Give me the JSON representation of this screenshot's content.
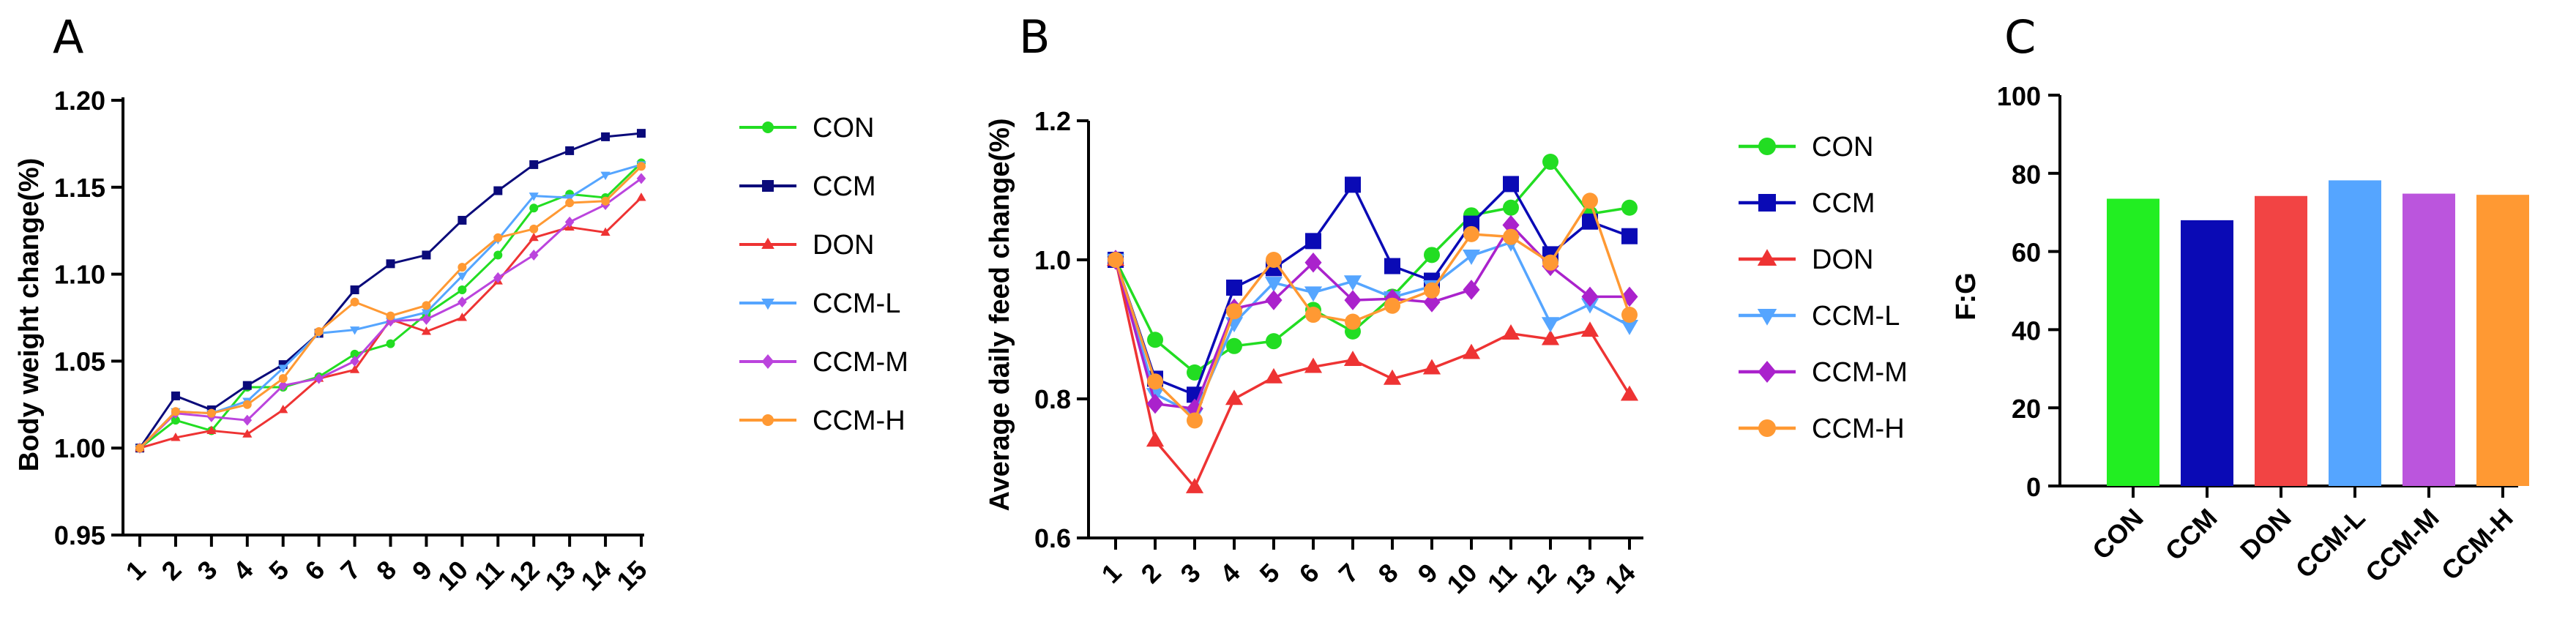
{
  "chart_data": [
    {
      "panel": "A",
      "type": "line",
      "ylabel": "Body weight change(%)",
      "xlabel": "",
      "categories": [
        "1",
        "2",
        "3",
        "4",
        "5",
        "6",
        "7",
        "8",
        "9",
        "10",
        "11",
        "12",
        "13",
        "14",
        "15"
      ],
      "ylim": [
        0.95,
        1.2
      ],
      "yticks": [
        "0.95",
        "1.00",
        "1.05",
        "1.10",
        "1.15",
        "1.20"
      ],
      "legend_position": "right",
      "series": [
        {
          "name": "CON",
          "color": "#22dd22",
          "marker": "circle",
          "values": [
            1.0,
            1.016,
            1.01,
            1.035,
            1.035,
            1.041,
            1.054,
            1.06,
            1.077,
            1.091,
            1.111,
            1.138,
            1.146,
            1.144,
            1.164
          ]
        },
        {
          "name": "CCM",
          "color": "#0a0a7a",
          "marker": "square",
          "values": [
            1.0,
            1.03,
            1.022,
            1.036,
            1.048,
            1.066,
            1.091,
            1.106,
            1.111,
            1.131,
            1.148,
            1.163,
            1.171,
            1.179,
            1.181
          ]
        },
        {
          "name": "DON",
          "color": "#ee3333",
          "marker": "triangle",
          "values": [
            1.0,
            1.006,
            1.01,
            1.008,
            1.022,
            1.04,
            1.045,
            1.074,
            1.067,
            1.075,
            1.096,
            1.121,
            1.127,
            1.124,
            1.144
          ]
        },
        {
          "name": "CCM-L",
          "color": "#55a5ff",
          "marker": "triangle-down",
          "values": [
            1.0,
            1.021,
            1.02,
            1.027,
            1.046,
            1.066,
            1.068,
            1.073,
            1.078,
            1.099,
            1.12,
            1.145,
            1.144,
            1.157,
            1.163
          ]
        },
        {
          "name": "CCM-M",
          "color": "#bb44dd",
          "marker": "diamond",
          "values": [
            1.0,
            1.02,
            1.018,
            1.016,
            1.036,
            1.04,
            1.05,
            1.073,
            1.074,
            1.084,
            1.098,
            1.111,
            1.13,
            1.14,
            1.155
          ]
        },
        {
          "name": "CCM-H",
          "color": "#ff9933",
          "marker": "circle",
          "values": [
            1.0,
            1.021,
            1.02,
            1.025,
            1.04,
            1.067,
            1.084,
            1.076,
            1.082,
            1.104,
            1.121,
            1.126,
            1.141,
            1.142,
            1.162
          ]
        }
      ]
    },
    {
      "panel": "B",
      "type": "line",
      "ylabel": "Average daily feed change(%)",
      "xlabel": "",
      "categories": [
        "1",
        "2",
        "3",
        "4",
        "5",
        "6",
        "7",
        "8",
        "9",
        "10",
        "11",
        "12",
        "13",
        "14"
      ],
      "ylim": [
        0.6,
        1.2
      ],
      "yticks": [
        "0.6",
        "0.8",
        "1.0",
        "1.2"
      ],
      "legend_position": "right",
      "series": [
        {
          "name": "CON",
          "color": "#22dd22",
          "marker": "circle",
          "values": [
            1.0,
            0.885,
            0.838,
            0.876,
            0.883,
            0.928,
            0.897,
            0.947,
            1.007,
            1.064,
            1.075,
            1.141,
            1.066,
            1.075
          ]
        },
        {
          "name": "CCM",
          "color": "#0a0ab5",
          "marker": "square",
          "values": [
            1.0,
            0.829,
            0.806,
            0.96,
            0.988,
            1.027,
            1.108,
            0.991,
            0.97,
            1.052,
            1.109,
            1.008,
            1.055,
            1.034
          ]
        },
        {
          "name": "DON",
          "color": "#ee3333",
          "marker": "triangle",
          "values": [
            1.0,
            0.74,
            0.673,
            0.8,
            0.831,
            0.846,
            0.856,
            0.829,
            0.844,
            0.866,
            0.894,
            0.886,
            0.898,
            0.806
          ]
        },
        {
          "name": "CCM-L",
          "color": "#55a5ff",
          "marker": "triangle-down",
          "values": [
            1.0,
            0.807,
            0.778,
            0.909,
            0.967,
            0.953,
            0.969,
            0.946,
            0.962,
            1.006,
            1.025,
            0.909,
            0.936,
            0.905
          ]
        },
        {
          "name": "CCM-M",
          "color": "#aa22cc",
          "marker": "diamond",
          "values": [
            1.0,
            0.793,
            0.786,
            0.93,
            0.942,
            0.996,
            0.942,
            0.944,
            0.939,
            0.957,
            1.05,
            0.991,
            0.947,
            0.947
          ]
        },
        {
          "name": "CCM-H",
          "color": "#ff9933",
          "marker": "circle",
          "values": [
            1.0,
            0.825,
            0.769,
            0.926,
            1.0,
            0.921,
            0.911,
            0.934,
            0.956,
            1.037,
            1.033,
            0.996,
            1.085,
            0.921
          ]
        }
      ]
    },
    {
      "panel": "C",
      "type": "bar",
      "ylabel": "F:G",
      "xlabel": "",
      "categories": [
        "CON",
        "CCM",
        "DON",
        "CCM-L",
        "CCM-M",
        "CCM-H"
      ],
      "values": [
        73.5,
        68.0,
        74.2,
        78.2,
        74.8,
        74.5
      ],
      "colors": [
        "#22ee22",
        "#0a0ab5",
        "#f24444",
        "#55a5ff",
        "#bb55dd",
        "#ff9933"
      ],
      "ylim": [
        0,
        100
      ],
      "yticks": [
        "0",
        "20",
        "40",
        "60",
        "80",
        "100"
      ]
    }
  ]
}
